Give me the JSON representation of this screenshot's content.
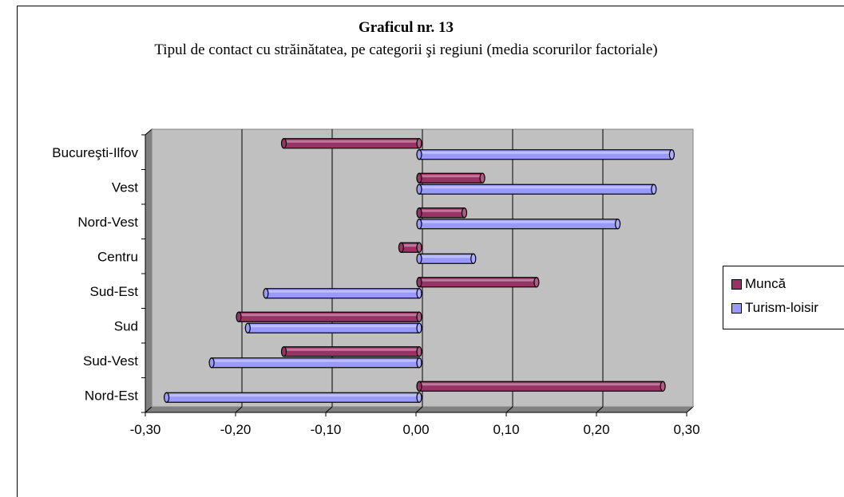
{
  "chart_data": {
    "type": "bar",
    "orientation": "horizontal",
    "title": "Graficul nr. 13",
    "subtitle": "Tipul de contact cu străinătatea, pe categorii şi regiuni (media scorurilor factoriale)",
    "categories": [
      "Bucureşti-Ilfov",
      "Vest",
      "Nord-Vest",
      "Centru",
      "Sud-Est",
      "Sud",
      "Sud-Vest",
      "Nord-Est"
    ],
    "series": [
      {
        "name": "Muncă",
        "color": "#993366",
        "values": [
          -0.15,
          0.07,
          0.05,
          -0.02,
          0.13,
          -0.2,
          -0.15,
          0.27
        ]
      },
      {
        "name": "Turism-loisir",
        "color": "#9999ff",
        "values": [
          0.28,
          0.26,
          0.22,
          0.06,
          -0.17,
          -0.19,
          -0.23,
          -0.28
        ]
      }
    ],
    "xlim": [
      -0.3,
      0.3
    ],
    "xticks": [
      "-0,30",
      "-0,20",
      "-0,10",
      "0,00",
      "0,10",
      "0,20",
      "0,30"
    ],
    "grid": true,
    "plot_background": "#c0c0c0",
    "legend_position": "right",
    "legend_labels": [
      "Muncă",
      "Turism-loisir"
    ]
  }
}
